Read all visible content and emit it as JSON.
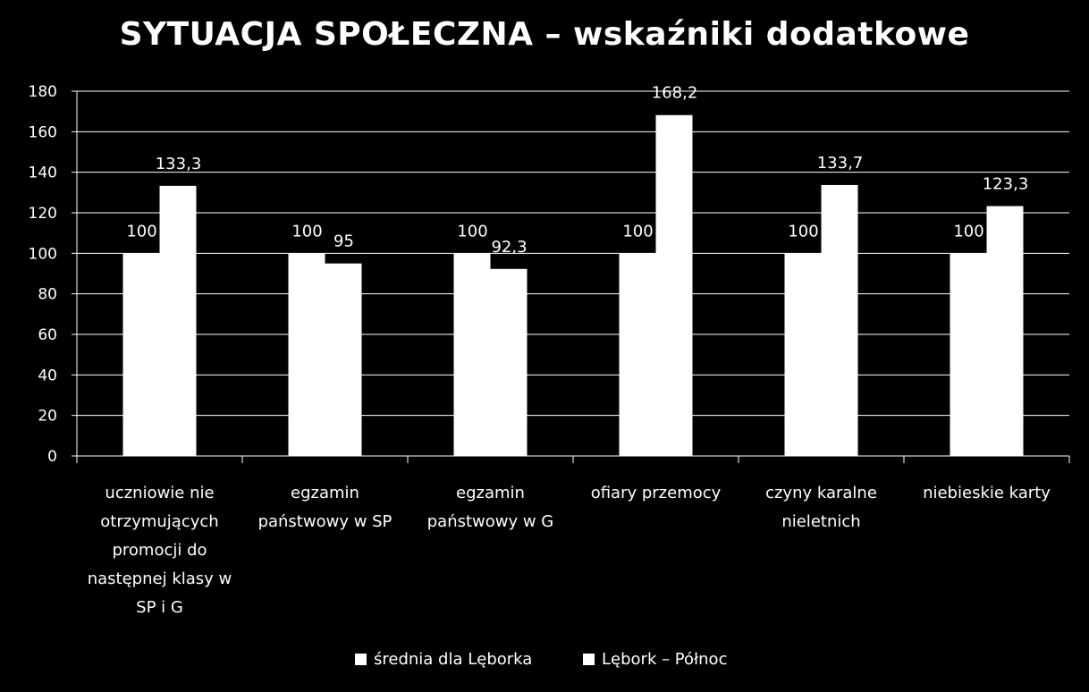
{
  "chart_data": {
    "type": "bar",
    "title": "SYTUACJA SPOŁECZNA – wskaźniki dodatkowe",
    "xlabel": "",
    "ylabel": "",
    "ylim": [
      0,
      180
    ],
    "y_ticks": [
      0,
      20,
      40,
      60,
      80,
      100,
      120,
      140,
      160,
      180
    ],
    "grid": true,
    "legend_position": "bottom",
    "categories": [
      [
        "uczniowie nie",
        "otrzymujących",
        "promocji do",
        "następnej klasy w",
        "SP i G"
      ],
      [
        "egzamin",
        "państwowy w SP"
      ],
      [
        "egzamin",
        "państwowy w G"
      ],
      [
        "ofiary przemocy"
      ],
      [
        "czyny karalne",
        "nieletnich"
      ],
      [
        "niebieskie karty"
      ]
    ],
    "series": [
      {
        "name": "średnia dla Lęborka",
        "values": [
          100,
          100,
          100,
          100,
          100,
          100
        ],
        "labels": [
          "100",
          "100",
          "100",
          "100",
          "100",
          "100"
        ],
        "color": "#ffffff"
      },
      {
        "name": "Lębork – Północ",
        "values": [
          133.3,
          95,
          92.3,
          168.2,
          133.7,
          123.3
        ],
        "labels": [
          "133,3",
          "95",
          "92,3",
          "168,2",
          "133,7",
          "123,3"
        ],
        "color": "#ffffff"
      }
    ],
    "colors": {
      "background": "#000000",
      "bars": "#ffffff",
      "grid": "#ffffff",
      "text": "#ffffff"
    }
  }
}
